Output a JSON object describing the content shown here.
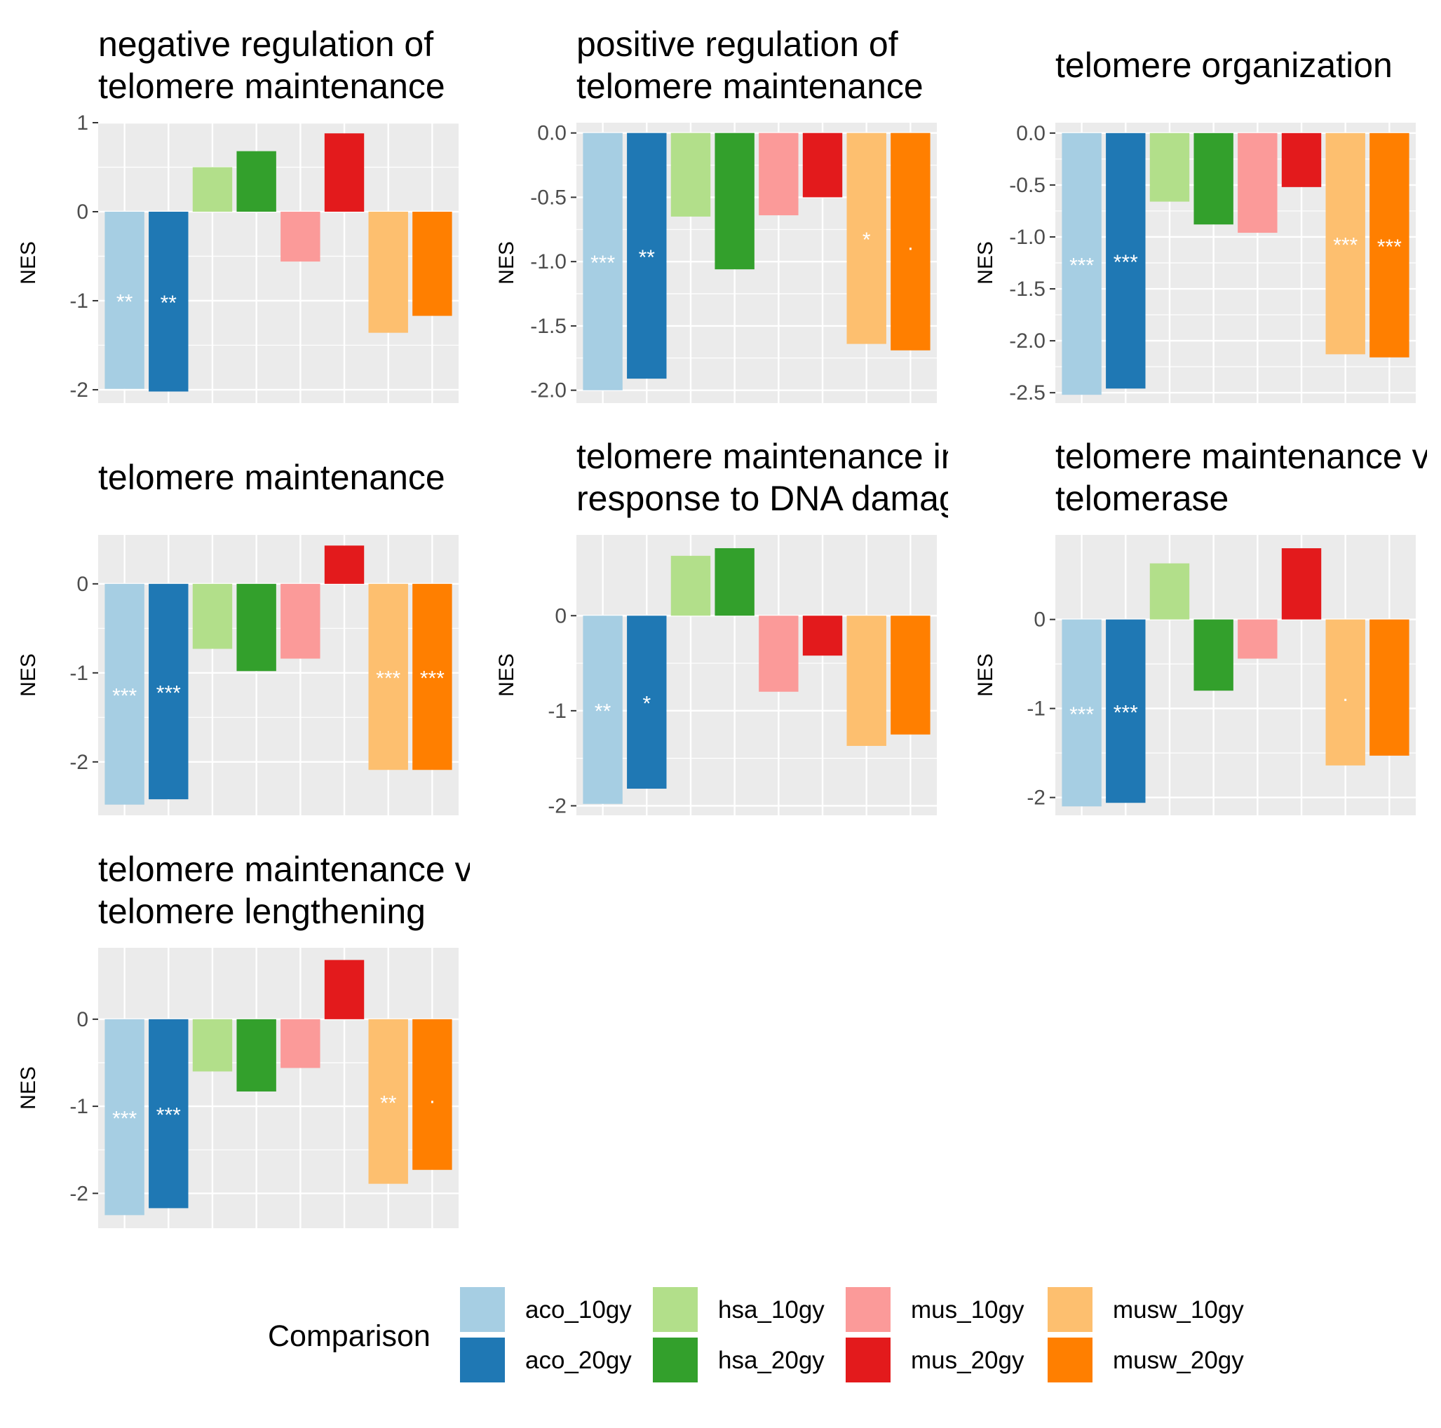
{
  "chart_data": {
    "type": "bar",
    "categories": [
      "aco_10gy",
      "aco_20gy",
      "hsa_10gy",
      "hsa_20gy",
      "mus_10gy",
      "mus_20gy",
      "musw_10gy",
      "musw_20gy"
    ],
    "colors": {
      "aco_10gy": "#A6CEE3",
      "aco_20gy": "#1F78B4",
      "hsa_10gy": "#B2DF8A",
      "hsa_20gy": "#33A02C",
      "mus_10gy": "#FB9A99",
      "mus_20gy": "#E31A1C",
      "musw_10gy": "#FDBF6F",
      "musw_20gy": "#FF7F00"
    },
    "panel_background": "#EBEBEB",
    "grid": true,
    "legend": {
      "title": "Comparison",
      "position": "bottom",
      "labels": [
        "aco_10gy",
        "aco_20gy",
        "hsa_10gy",
        "hsa_20gy",
        "mus_10gy",
        "mus_20gy",
        "musw_10gy",
        "musw_20gy"
      ]
    },
    "panels": [
      {
        "title_lines": [
          "negative regulation of",
          "telomere maintenance"
        ],
        "ylabel": "NES",
        "ylim": [
          -2.15,
          1.0
        ],
        "yticks": [
          1,
          0,
          -1,
          -2
        ],
        "tick_labels": [
          "1",
          "0",
          "-1",
          "-2"
        ],
        "values": [
          -1.99,
          -2.02,
          0.5,
          0.68,
          -0.56,
          0.88,
          -1.36,
          -1.17
        ],
        "significance": [
          "**",
          "**",
          "",
          "",
          "",
          "",
          "",
          ""
        ]
      },
      {
        "title_lines": [
          "positive regulation of",
          "telomere maintenance"
        ],
        "ylabel": "NES",
        "ylim": [
          -2.1,
          0.08
        ],
        "yticks": [
          0.0,
          -0.5,
          -1.0,
          -1.5,
          -2.0
        ],
        "tick_labels": [
          "0.0",
          "-0.5",
          "-1.0",
          "-1.5",
          "-2.0"
        ],
        "values": [
          -2.0,
          -1.91,
          -0.65,
          -1.06,
          -0.64,
          -0.5,
          -1.64,
          -1.69
        ],
        "significance": [
          "***",
          "**",
          "",
          "",
          "",
          "",
          "*",
          "."
        ]
      },
      {
        "title_lines": [
          "telomere organization"
        ],
        "ylabel": "NES",
        "ylim": [
          -2.6,
          0.1
        ],
        "yticks": [
          0.0,
          -0.5,
          -1.0,
          -1.5,
          -2.0,
          -2.5
        ],
        "tick_labels": [
          "0.0",
          "-0.5",
          "-1.0",
          "-1.5",
          "-2.0",
          "-2.5"
        ],
        "values": [
          -2.52,
          -2.46,
          -0.66,
          -0.88,
          -0.96,
          -0.52,
          -2.13,
          -2.16
        ],
        "significance": [
          "***",
          "***",
          "",
          "",
          "",
          "",
          "***",
          "***"
        ]
      },
      {
        "title_lines": [
          "telomere maintenance"
        ],
        "ylabel": "NES",
        "ylim": [
          -2.6,
          0.55
        ],
        "yticks": [
          0,
          -1,
          -2
        ],
        "tick_labels": [
          "0",
          "-1",
          "-2"
        ],
        "values": [
          -2.48,
          -2.42,
          -0.73,
          -0.98,
          -0.84,
          0.43,
          -2.09,
          -2.09
        ],
        "significance": [
          "***",
          "***",
          "",
          "",
          "",
          "",
          "***",
          "***"
        ]
      },
      {
        "title_lines": [
          "telomere maintenance in",
          "response to DNA damage"
        ],
        "ylabel": "NES",
        "ylim": [
          -2.1,
          0.85
        ],
        "yticks": [
          0,
          -1,
          -2
        ],
        "tick_labels": [
          "0",
          "-1",
          "-2"
        ],
        "values": [
          -1.98,
          -1.82,
          0.63,
          0.71,
          -0.8,
          -0.42,
          -1.37,
          -1.25
        ],
        "significance": [
          "**",
          "*",
          "",
          "",
          "",
          "",
          "",
          ""
        ]
      },
      {
        "title_lines": [
          "telomere maintenance via",
          "telomerase"
        ],
        "ylabel": "NES",
        "ylim": [
          -2.2,
          0.95
        ],
        "yticks": [
          0,
          -1,
          -2
        ],
        "tick_labels": [
          "0",
          "-1",
          "-2"
        ],
        "values": [
          -2.1,
          -2.06,
          0.63,
          -0.8,
          -0.44,
          0.8,
          -1.64,
          -1.53
        ],
        "significance": [
          "***",
          "***",
          "",
          "",
          "",
          "",
          ".",
          ""
        ]
      },
      {
        "title_lines": [
          "telomere maintenance via",
          "telomere lengthening"
        ],
        "ylabel": "NES",
        "ylim": [
          -2.4,
          0.82
        ],
        "yticks": [
          0,
          -1,
          -2
        ],
        "tick_labels": [
          "0",
          "-1",
          "-2"
        ],
        "values": [
          -2.25,
          -2.17,
          -0.6,
          -0.83,
          -0.56,
          0.68,
          -1.89,
          -1.73
        ],
        "significance": [
          "***",
          "***",
          "",
          "",
          "",
          "",
          "**",
          "."
        ]
      }
    ]
  }
}
